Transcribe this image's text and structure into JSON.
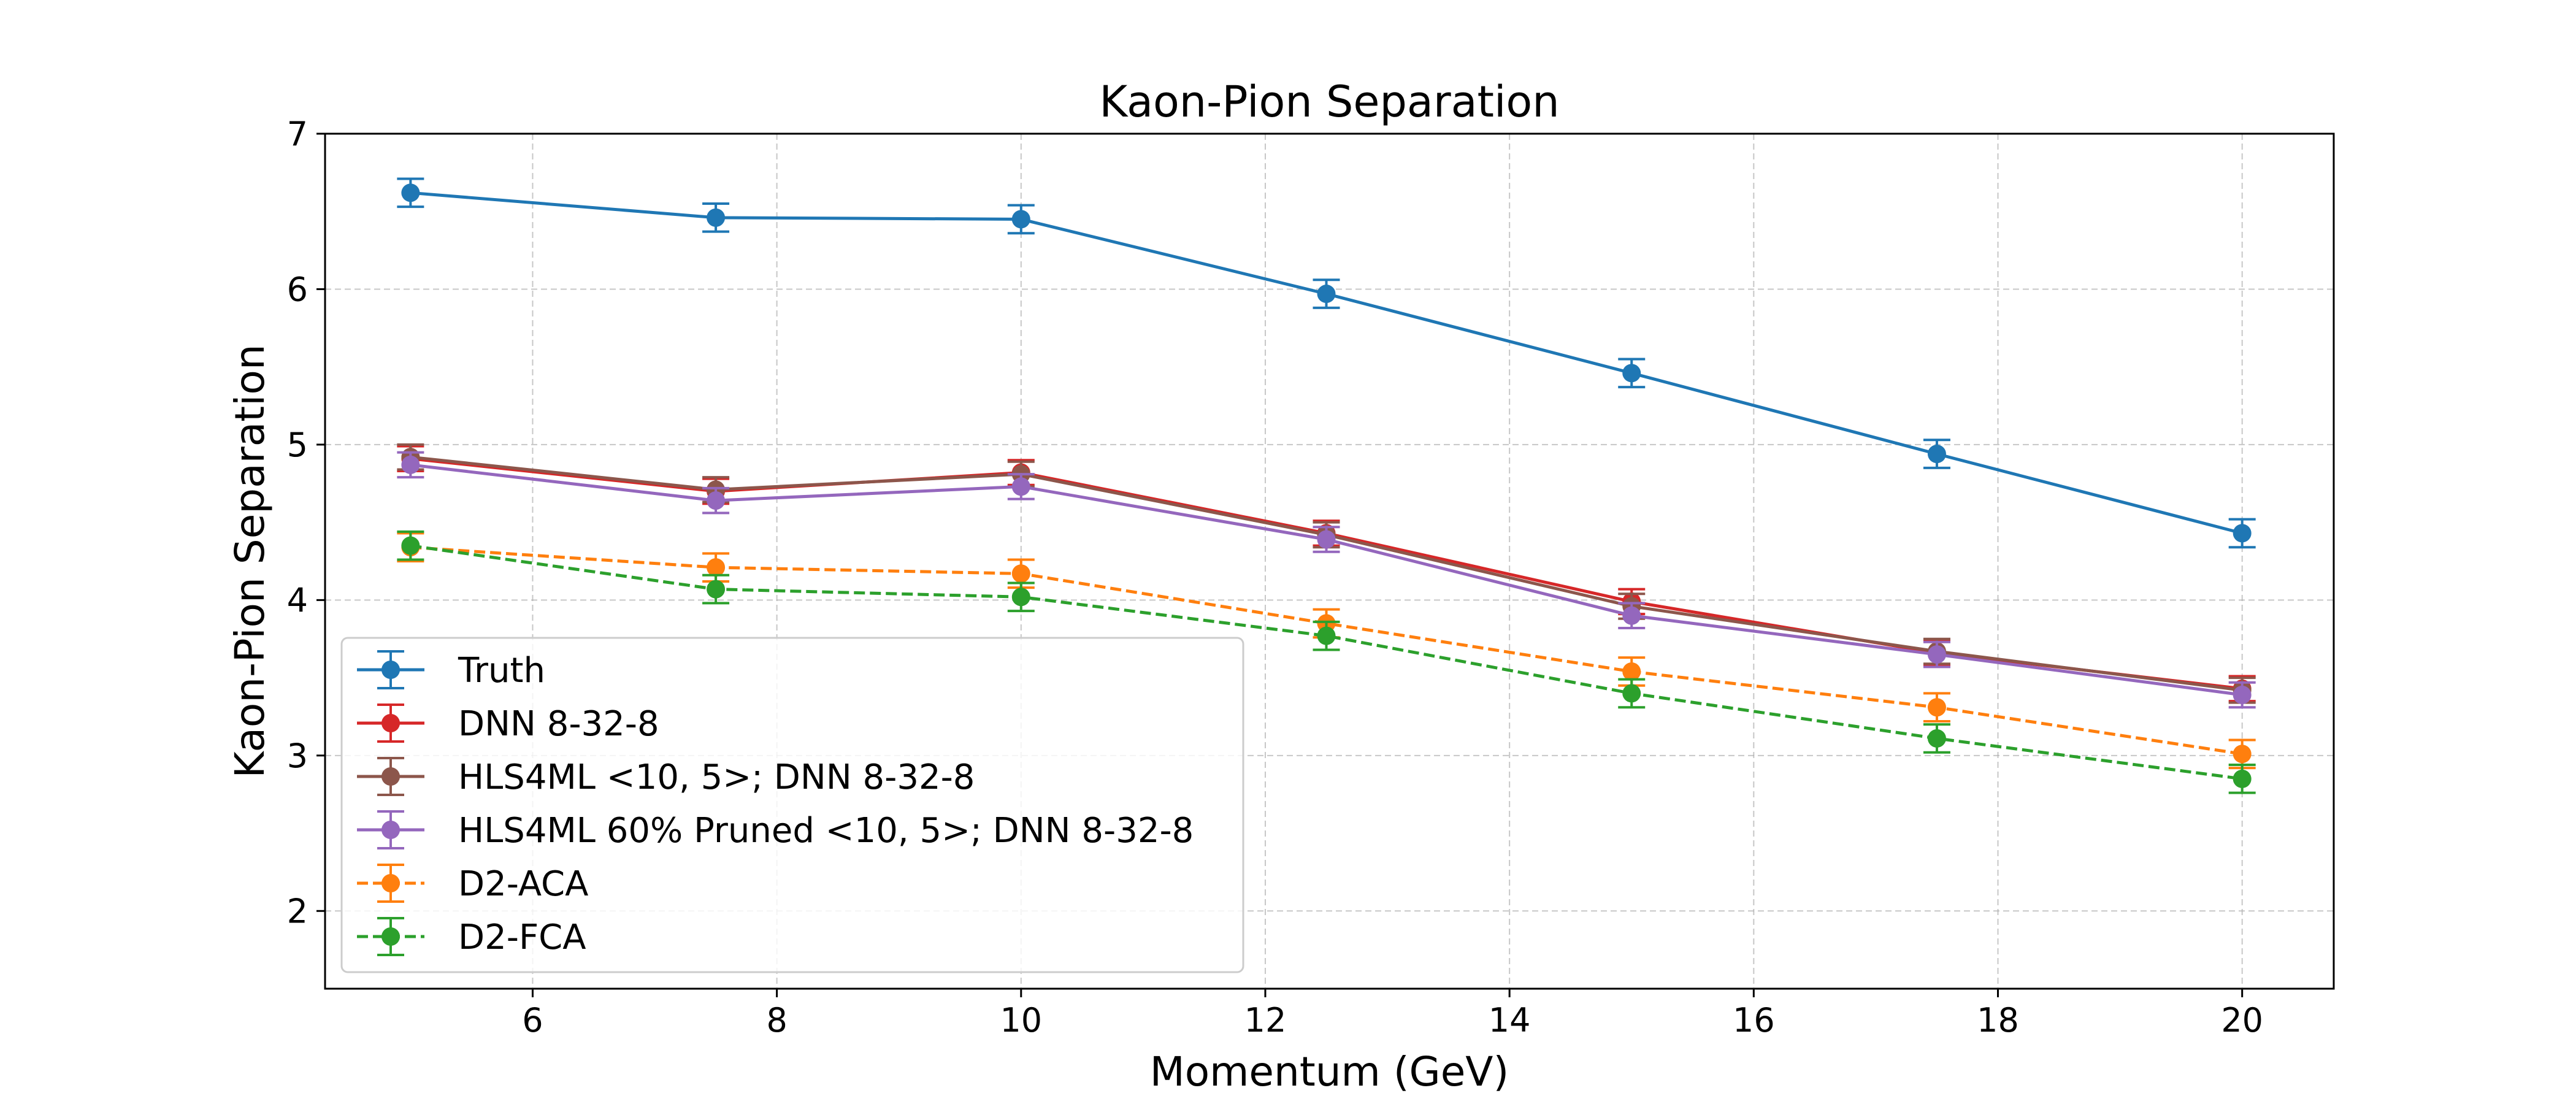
{
  "chart_data": {
    "type": "line",
    "title": "Kaon-Pion Separation",
    "xlabel": "Momentum (GeV)",
    "ylabel": "Kaon-Pion Separation",
    "xlim": [
      4.3,
      20.75
    ],
    "ylim": [
      1.5,
      7.0
    ],
    "xticks": [
      6,
      8,
      10,
      12,
      14,
      16,
      18,
      20
    ],
    "yticks": [
      2,
      3,
      4,
      5,
      6,
      7
    ],
    "grid": true,
    "legend_position": "lower-left",
    "x": [
      5,
      7.5,
      10,
      12.5,
      15,
      17.5,
      20
    ],
    "series": [
      {
        "name": "Truth",
        "color": "#1f77b4",
        "linestyle": "solid",
        "values": [
          6.62,
          6.46,
          6.45,
          5.97,
          5.46,
          4.94,
          4.43
        ],
        "errors": [
          0.09,
          0.09,
          0.09,
          0.09,
          0.09,
          0.09,
          0.09
        ]
      },
      {
        "name": "DNN 8-32-8",
        "color": "#d62728",
        "linestyle": "solid",
        "values": [
          4.91,
          4.7,
          4.82,
          4.43,
          3.99,
          3.66,
          3.43
        ],
        "errors": [
          0.08,
          0.08,
          0.08,
          0.08,
          0.08,
          0.08,
          0.08
        ]
      },
      {
        "name": "HLS4ML <10, 5>; DNN 8-32-8",
        "color": "#8c564b",
        "linestyle": "solid",
        "values": [
          4.92,
          4.71,
          4.81,
          4.42,
          3.96,
          3.67,
          3.42
        ],
        "errors": [
          0.08,
          0.08,
          0.08,
          0.08,
          0.08,
          0.08,
          0.08
        ]
      },
      {
        "name": "HLS4ML 60% Pruned <10, 5>; DNN 8-32-8",
        "color": "#9467bd",
        "linestyle": "solid",
        "values": [
          4.87,
          4.64,
          4.73,
          4.39,
          3.9,
          3.65,
          3.39
        ],
        "errors": [
          0.08,
          0.08,
          0.08,
          0.08,
          0.08,
          0.08,
          0.08
        ]
      },
      {
        "name": "D2-ACA",
        "color": "#ff7f0e",
        "linestyle": "dashed",
        "values": [
          4.34,
          4.21,
          4.17,
          3.85,
          3.54,
          3.31,
          3.01
        ],
        "errors": [
          0.09,
          0.09,
          0.09,
          0.09,
          0.09,
          0.09,
          0.09
        ]
      },
      {
        "name": "D2-FCA",
        "color": "#2ca02c",
        "linestyle": "dashed",
        "values": [
          4.35,
          4.07,
          4.02,
          3.77,
          3.4,
          3.11,
          2.85
        ],
        "errors": [
          0.09,
          0.09,
          0.09,
          0.09,
          0.09,
          0.09,
          0.09
        ]
      }
    ]
  }
}
